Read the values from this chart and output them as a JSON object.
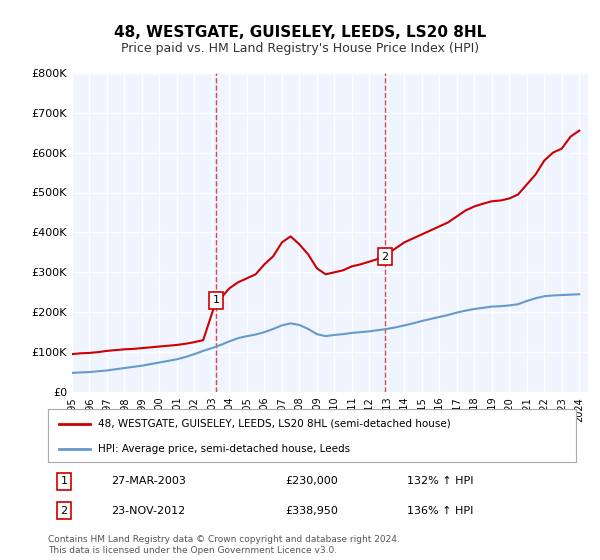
{
  "title": "48, WESTGATE, GUISELEY, LEEDS, LS20 8HL",
  "subtitle": "Price paid vs. HM Land Registry's House Price Index (HPI)",
  "legend_property": "48, WESTGATE, GUISELEY, LEEDS, LS20 8HL (semi-detached house)",
  "legend_hpi": "HPI: Average price, semi-detached house, Leeds",
  "footer1": "Contains HM Land Registry data © Crown copyright and database right 2024.",
  "footer2": "This data is licensed under the Open Government Licence v3.0.",
  "sale1_label": "1",
  "sale1_date": "27-MAR-2003",
  "sale1_price": "£230,000",
  "sale1_hpi": "132% ↑ HPI",
  "sale2_label": "2",
  "sale2_date": "23-NOV-2012",
  "sale2_price": "£338,950",
  "sale2_hpi": "136% ↑ HPI",
  "property_color": "#cc0000",
  "hpi_color": "#6699cc",
  "vline_color": "#cc0000",
  "ylim": [
    0,
    800000
  ],
  "yticks": [
    0,
    100000,
    200000,
    300000,
    400000,
    500000,
    600000,
    700000,
    800000
  ],
  "property_x": [
    1995.0,
    1995.5,
    1996.0,
    1996.5,
    1997.0,
    1997.5,
    1998.0,
    1998.5,
    1999.0,
    1999.5,
    2000.0,
    2000.5,
    2001.0,
    2001.5,
    2002.0,
    2002.5,
    2003.25,
    2003.5,
    2004.0,
    2004.5,
    2005.0,
    2005.5,
    2006.0,
    2006.5,
    2007.0,
    2007.5,
    2008.0,
    2008.5,
    2009.0,
    2009.5,
    2010.0,
    2010.5,
    2011.0,
    2011.5,
    2012.9,
    2013.0,
    2013.5,
    2014.0,
    2014.5,
    2015.0,
    2015.5,
    2016.0,
    2016.5,
    2017.0,
    2017.5,
    2018.0,
    2018.5,
    2019.0,
    2019.5,
    2020.0,
    2020.5,
    2021.0,
    2021.5,
    2022.0,
    2022.5,
    2023.0,
    2023.5,
    2024.0
  ],
  "property_y": [
    95000,
    97000,
    98000,
    100000,
    103000,
    105000,
    107000,
    108000,
    110000,
    112000,
    114000,
    116000,
    118000,
    121000,
    125000,
    130000,
    230000,
    235000,
    260000,
    275000,
    285000,
    295000,
    320000,
    340000,
    375000,
    390000,
    370000,
    345000,
    310000,
    295000,
    300000,
    305000,
    315000,
    320000,
    338950,
    345000,
    360000,
    375000,
    385000,
    395000,
    405000,
    415000,
    425000,
    440000,
    455000,
    465000,
    472000,
    478000,
    480000,
    485000,
    495000,
    520000,
    545000,
    580000,
    600000,
    610000,
    640000,
    655000
  ],
  "hpi_x": [
    1995.0,
    1995.5,
    1996.0,
    1996.5,
    1997.0,
    1997.5,
    1998.0,
    1998.5,
    1999.0,
    1999.5,
    2000.0,
    2000.5,
    2001.0,
    2001.5,
    2002.0,
    2002.5,
    2003.0,
    2003.5,
    2004.0,
    2004.5,
    2005.0,
    2005.5,
    2006.0,
    2006.5,
    2007.0,
    2007.5,
    2008.0,
    2008.5,
    2009.0,
    2009.5,
    2010.0,
    2010.5,
    2011.0,
    2011.5,
    2012.0,
    2012.5,
    2013.0,
    2013.5,
    2014.0,
    2014.5,
    2015.0,
    2015.5,
    2016.0,
    2016.5,
    2017.0,
    2017.5,
    2018.0,
    2018.5,
    2019.0,
    2019.5,
    2020.0,
    2020.5,
    2021.0,
    2021.5,
    2022.0,
    2022.5,
    2023.0,
    2023.5,
    2024.0
  ],
  "hpi_y": [
    48000,
    49000,
    50000,
    52000,
    54000,
    57000,
    60000,
    63000,
    66000,
    70000,
    74000,
    78000,
    82000,
    88000,
    95000,
    103000,
    110000,
    118000,
    127000,
    135000,
    140000,
    144000,
    150000,
    158000,
    167000,
    172000,
    168000,
    158000,
    145000,
    140000,
    143000,
    145000,
    148000,
    150000,
    152000,
    155000,
    158000,
    162000,
    167000,
    172000,
    178000,
    183000,
    188000,
    193000,
    199000,
    204000,
    208000,
    211000,
    214000,
    215000,
    217000,
    220000,
    228000,
    235000,
    240000,
    242000,
    243000,
    244000,
    245000
  ],
  "sale1_x": 2003.25,
  "sale1_y": 230000,
  "sale2_x": 2012.9,
  "sale2_y": 338950,
  "vline1_x": 2003.25,
  "vline2_x": 2012.9,
  "xmin": 1995,
  "xmax": 2024.5,
  "background_color": "#ffffff",
  "plot_bg_color": "#f0f4ff",
  "grid_color": "#ffffff"
}
